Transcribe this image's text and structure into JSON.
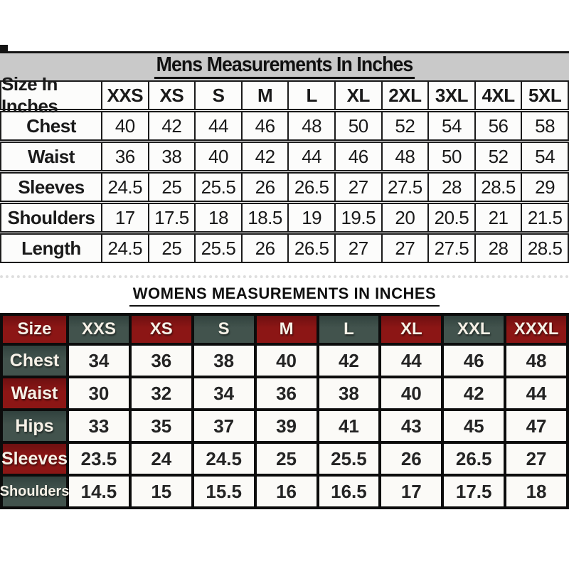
{
  "page": {
    "background": "#ffffff"
  },
  "colors": {
    "mens_band_gray": "#c9c9c9",
    "grid_black": "#1b1b1b",
    "womens_red": "#8c1615",
    "womens_teal": "#42534d",
    "womens_header_text": "#f6f1e7",
    "value_text": "#242424",
    "cell_white": "#fbfaf7"
  },
  "mens_table": {
    "title": "Mens Measurements In Inches",
    "header": [
      "Size In Inches",
      "XXS",
      "XS",
      "S",
      "M",
      "L",
      "XL",
      "2XL",
      "3XL",
      "4XL",
      "5XL"
    ],
    "rows": [
      {
        "label": "Chest",
        "values": [
          "40",
          "42",
          "44",
          "46",
          "48",
          "50",
          "52",
          "54",
          "56",
          "58"
        ]
      },
      {
        "label": "Waist",
        "values": [
          "36",
          "38",
          "40",
          "42",
          "44",
          "46",
          "48",
          "50",
          "52",
          "54"
        ]
      },
      {
        "label": "Sleeves",
        "values": [
          "24.5",
          "25",
          "25.5",
          "26",
          "26.5",
          "27",
          "27.5",
          "28",
          "28.5",
          "29"
        ]
      },
      {
        "label": "Shoulders",
        "values": [
          "17",
          "17.5",
          "18",
          "18.5",
          "19",
          "19.5",
          "20",
          "20.5",
          "21",
          "21.5"
        ]
      },
      {
        "label": "Length",
        "values": [
          "24.5",
          "25",
          "25.5",
          "26",
          "26.5",
          "27",
          "27",
          "27.5",
          "28",
          "28.5"
        ]
      }
    ]
  },
  "womens_table": {
    "title": "WOMENS MEASUREMENTS IN INCHES",
    "header": [
      "Size",
      "XXS",
      "XS",
      "S",
      "M",
      "L",
      "XL",
      "XXL",
      "XXXL"
    ],
    "header_colors": [
      "red",
      "teal",
      "red",
      "teal",
      "red",
      "teal",
      "red",
      "teal",
      "red"
    ],
    "rows": [
      {
        "label": "Chest",
        "label_color": "teal",
        "values": [
          "34",
          "36",
          "38",
          "40",
          "42",
          "44",
          "46",
          "48"
        ]
      },
      {
        "label": "Waist",
        "label_color": "red",
        "values": [
          "30",
          "32",
          "34",
          "36",
          "38",
          "40",
          "42",
          "44"
        ]
      },
      {
        "label": "Hips",
        "label_color": "teal",
        "values": [
          "33",
          "35",
          "37",
          "39",
          "41",
          "43",
          "45",
          "47"
        ]
      },
      {
        "label": "Sleeves",
        "label_color": "red",
        "values": [
          "23.5",
          "24",
          "24.5",
          "25",
          "25.5",
          "26",
          "26.5",
          "27"
        ]
      },
      {
        "label": "Shoulders",
        "label_color": "teal",
        "values": [
          "14.5",
          "15",
          "15.5",
          "16",
          "16.5",
          "17",
          "17.5",
          "18"
        ]
      }
    ]
  },
  "chart_data": [
    {
      "type": "table",
      "title": "Mens Measurements In Inches",
      "columns": [
        "Size In Inches",
        "XXS",
        "XS",
        "S",
        "M",
        "L",
        "XL",
        "2XL",
        "3XL",
        "4XL",
        "5XL"
      ],
      "rows": [
        [
          "Chest",
          40,
          42,
          44,
          46,
          48,
          50,
          52,
          54,
          56,
          58
        ],
        [
          "Waist",
          36,
          38,
          40,
          42,
          44,
          46,
          48,
          50,
          52,
          54
        ],
        [
          "Sleeves",
          24.5,
          25,
          25.5,
          26,
          26.5,
          27,
          27.5,
          28,
          28.5,
          29
        ],
        [
          "Shoulders",
          17,
          17.5,
          18,
          18.5,
          19,
          19.5,
          20,
          20.5,
          21,
          21.5
        ],
        [
          "Length",
          24.5,
          25,
          25.5,
          26,
          26.5,
          27,
          27,
          27.5,
          28,
          28.5
        ]
      ]
    },
    {
      "type": "table",
      "title": "WOMENS MEASUREMENTS IN INCHES",
      "columns": [
        "Size",
        "XXS",
        "XS",
        "S",
        "M",
        "L",
        "XL",
        "XXL",
        "XXXL"
      ],
      "rows": [
        [
          "Chest",
          34,
          36,
          38,
          40,
          42,
          44,
          46,
          48
        ],
        [
          "Waist",
          30,
          32,
          34,
          36,
          38,
          40,
          42,
          44
        ],
        [
          "Hips",
          33,
          35,
          37,
          39,
          41,
          43,
          45,
          47
        ],
        [
          "Sleeves",
          23.5,
          24,
          24.5,
          25,
          25.5,
          26,
          26.5,
          27
        ],
        [
          "Shoulders",
          14.5,
          15,
          15.5,
          16,
          16.5,
          17,
          17.5,
          18
        ]
      ]
    }
  ]
}
